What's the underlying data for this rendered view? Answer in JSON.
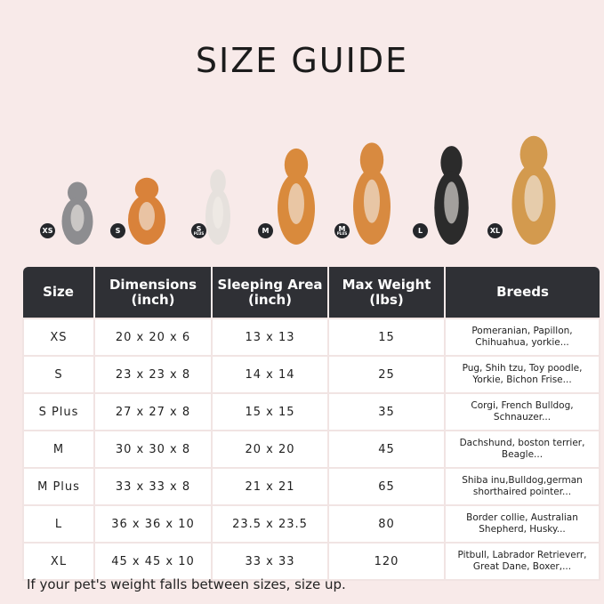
{
  "title": "SIZE GUIDE",
  "pets": [
    {
      "badge": "XS",
      "plus": "",
      "color": "#8d8d90"
    },
    {
      "badge": "S",
      "plus": "",
      "color": "#d9823a"
    },
    {
      "badge": "S",
      "plus": "PLUS",
      "color": "#e6e1dd"
    },
    {
      "badge": "M",
      "plus": "",
      "color": "#d98a3c"
    },
    {
      "badge": "M",
      "plus": "PLUS",
      "color": "#d88a40"
    },
    {
      "badge": "L",
      "plus": "",
      "color": "#2b2b2b"
    },
    {
      "badge": "XL",
      "plus": "",
      "color": "#d39a4e"
    }
  ],
  "table": {
    "headers": [
      "Size",
      "Dimensions\n(inch)",
      "Sleeping Area\n(inch)",
      "Max Weight\n(lbs)",
      "Breeds"
    ],
    "rows": [
      [
        "XS",
        "20 x 20 x 6",
        "13 x 13",
        "15",
        "Pomeranian, Papillon,\nChihuahua, yorkie..."
      ],
      [
        "S",
        "23 x 23 x 8",
        "14 x 14",
        "25",
        "Pug, Shih tzu, Toy poodle,\nYorkie, Bichon Frise..."
      ],
      [
        "S Plus",
        "27 x 27 x 8",
        "15 x 15",
        "35",
        "Corgi, French Bulldog,\nSchnauzer..."
      ],
      [
        "M",
        "30 x 30 x 8",
        "20 x 20",
        "45",
        "Dachshund, boston terrier,\nBeagle..."
      ],
      [
        "M Plus",
        "33 x 33 x 8",
        "21 x 21",
        "65",
        "Shiba inu,Bulldog,german\nshorthaired pointer..."
      ],
      [
        "L",
        "36 x 36 x 10",
        "23.5 x 23.5",
        "80",
        "Border collie, Australian\nShepherd, Husky..."
      ],
      [
        "XL",
        "45 x 45 x 10",
        "33 x 33",
        "120",
        "Pitbull, Labrador Retrieverr,\nGreat Dane, Boxer,..."
      ]
    ]
  },
  "note": "If your pet's weight falls between sizes, size up."
}
